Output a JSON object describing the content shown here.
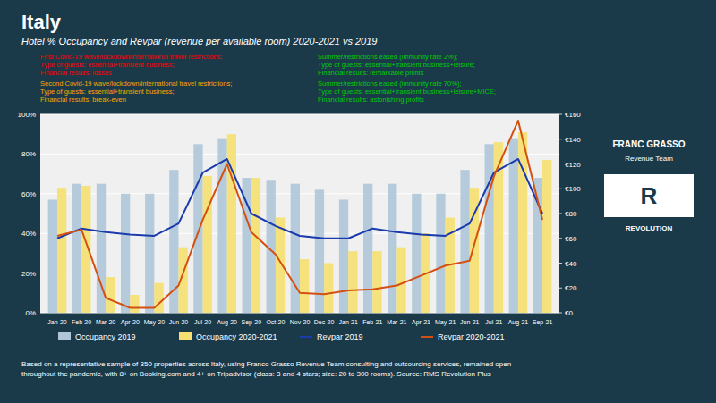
{
  "chart_data": {
    "type": "bar",
    "title": "Italy",
    "subtitle": "Hotel % Occupancy and Revpar (revenue per available room) 2020-2021 vs 2019",
    "categories": [
      "Jan-20",
      "Feb-20",
      "Mar-20",
      "Apr-20",
      "May-20",
      "Jun-20",
      "Jul-20",
      "Aug-20",
      "Sep-20",
      "Oct-20",
      "Nov-20",
      "Dec-20",
      "Jan-21",
      "Feb-21",
      "Mar-21",
      "Apr-21",
      "May-21",
      "Jun-21",
      "Jul-21",
      "Aug-21",
      "Sep-21"
    ],
    "series": [
      {
        "name": "Occupancy 2019",
        "type": "bar",
        "color": "#aec6d8",
        "values": [
          0.57,
          0.65,
          0.65,
          0.6,
          0.6,
          0.72,
          0.85,
          0.88,
          0.68,
          0.67,
          0.65,
          0.62,
          0.57,
          0.65,
          0.65,
          0.6,
          0.6,
          0.72,
          0.85,
          0.88,
          0.68
        ]
      },
      {
        "name": "Occupancy 2020-2021",
        "type": "bar",
        "color": "#f5e070",
        "values": [
          0.63,
          0.64,
          0.18,
          0.09,
          0.15,
          0.33,
          0.69,
          0.9,
          0.68,
          0.48,
          0.27,
          0.25,
          0.31,
          0.31,
          0.33,
          0.4,
          0.48,
          0.63,
          0.86,
          0.91,
          0.77
        ]
      },
      {
        "name": "Revpar 2019",
        "type": "line",
        "axis": "y2",
        "color": "#1a3aad",
        "values": [
          60,
          68,
          65,
          63,
          62,
          72,
          113,
          124,
          80,
          70,
          62,
          60,
          60,
          68,
          65,
          63,
          62,
          72,
          113,
          124,
          80
        ]
      },
      {
        "name": "Revpar 2020-2021",
        "type": "line",
        "axis": "y2",
        "color": "#d45010",
        "values": [
          62,
          67,
          12,
          4,
          4,
          22,
          75,
          120,
          65,
          47,
          16,
          15,
          18,
          19,
          22,
          30,
          38,
          42,
          110,
          155,
          75
        ]
      }
    ],
    "ylim": [
      0,
      1.0
    ],
    "yticks": [
      {
        "value": 0,
        "label": "0%"
      },
      {
        "value": 0.2,
        "label": "20%"
      },
      {
        "value": 0.4,
        "label": "40%"
      },
      {
        "value": 0.6,
        "label": "60%"
      },
      {
        "value": 0.8,
        "label": "80%"
      },
      {
        "value": 1.0,
        "label": "100%"
      }
    ],
    "y2lim": [
      0,
      160
    ],
    "y2ticks": [
      {
        "value": 0,
        "label": "€0"
      },
      {
        "value": 20,
        "label": "€20"
      },
      {
        "value": 40,
        "label": "€40"
      },
      {
        "value": 60,
        "label": "€60"
      },
      {
        "value": 80,
        "label": "€80"
      },
      {
        "value": 100,
        "label": "€100"
      },
      {
        "value": 120,
        "label": "€120"
      },
      {
        "value": 140,
        "label": "€140"
      },
      {
        "value": 160,
        "label": "€160"
      }
    ],
    "grid": true,
    "legend": "bottom",
    "annotations": [
      {
        "text": "First Covid-19 wave/lockdown/international travel restrictions;\nType of guests: essential+transient business;\nFinancial results: losses",
        "color": "red"
      },
      {
        "text": "Summer/restrictions eased (immunity rate 2%);\nType of guests: essential+transient business+leisure;\nFinancial results: remarkable profits",
        "color": "#00cc00"
      },
      {
        "text": "Second Covid-19 wave/lockdown/international travel restrictions;\nType of guests: essential+transient business;\nFinancial results: break-even",
        "color": "orange"
      },
      {
        "text": "Summer/restrictions eased (immunity rate 70%);\nType of guests: essential+transient business+leisure+MICE;\nFinancial results: astonishing profits",
        "color": "#00cc00"
      }
    ],
    "footer": "Based on a representative sample of 350 properties across Italy, using Franco Grasso Revenue Team consulting and outsourcing services, remained open\nthroughout the pandemic, with 8+ on Booking.com and 4+ on Tripadvisor (class: 3 and 4 stars; size: 20 to 300 rooms). Source: RMS Revolution Plus",
    "logo": [
      "FRANC GRASSO",
      "Revenue Team",
      "R",
      "REVOLUTION"
    ]
  }
}
